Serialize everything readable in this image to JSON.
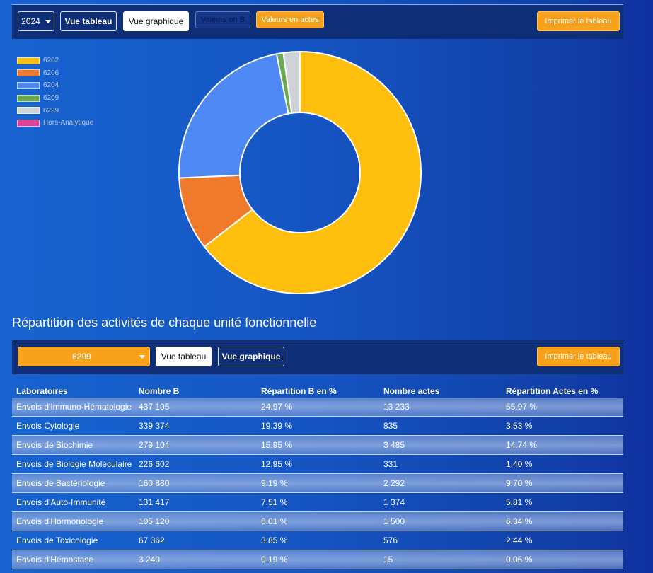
{
  "top_toolbar": {
    "year_value": "2024",
    "vue_tableau": "Vue tableau",
    "vue_graphique": "Vue graphique",
    "valeurs_b": "Valeurs en B",
    "valeurs_actes": "Valeurs en actes",
    "print": "Imprimer le tableau"
  },
  "legend": [
    {
      "label": "6202",
      "color": "#ffbf0e"
    },
    {
      "label": "6206",
      "color": "#f07a2b"
    },
    {
      "label": "6204",
      "color": "#4d88f4"
    },
    {
      "label": "6209",
      "color": "#6aaa53"
    },
    {
      "label": "6299",
      "color": "#cfd3d6"
    },
    {
      "label": "Hors-Analytique",
      "color": "#e23f96"
    }
  ],
  "chart_data": {
    "type": "pie",
    "title": "",
    "categories": [
      "6202",
      "6206",
      "6204",
      "6209",
      "6299",
      "Hors-Analytique"
    ],
    "values": [
      64.5,
      9.8,
      22.6,
      0.9,
      2.2,
      0
    ],
    "colors": [
      "#ffbf0e",
      "#f07a2b",
      "#4d88f4",
      "#6aaa53",
      "#cfd3d6",
      "#e23f96"
    ]
  },
  "section": {
    "title": "Répartition des activités de chaque unité fonctionnelle",
    "selected_unit": "6299",
    "vue_tableau": "Vue tableau",
    "vue_graphique": "Vue graphique",
    "print": "Imprimer le tableau"
  },
  "table": {
    "headers": [
      "Laboratoires",
      "Nombre B",
      "Répartition B en %",
      "Nombre actes",
      "Répartition Actes en %"
    ],
    "rows": [
      [
        "Envois d'Immuno-Hématologie",
        "437 105",
        "24.97 %",
        "13 233",
        "55.97 %"
      ],
      [
        "Envois Cytologie",
        "339 374",
        "19.39 %",
        "835",
        "3.53 %"
      ],
      [
        "Envois de Biochimie",
        "279 104",
        "15.95 %",
        "3 485",
        "14.74 %"
      ],
      [
        "Envois de Biologie Moléculaire",
        "226 602",
        "12.95 %",
        "331",
        "1.40 %"
      ],
      [
        "Envois de Bactériologie",
        "160 880",
        "9.19 %",
        "2 292",
        "9.70 %"
      ],
      [
        "Envois d'Auto-Immunité",
        "131 417",
        "7.51 %",
        "1 374",
        "5.81 %"
      ],
      [
        "Envois d'Hormonologie",
        "105 120",
        "6.01 %",
        "1 500",
        "6.34 %"
      ],
      [
        "Envois de Toxicologie",
        "67 362",
        "3.85 %",
        "576",
        "2.44 %"
      ],
      [
        "Envois d'Hémostase",
        "3 240",
        "0.19 %",
        "15",
        "0.06 %"
      ]
    ]
  }
}
